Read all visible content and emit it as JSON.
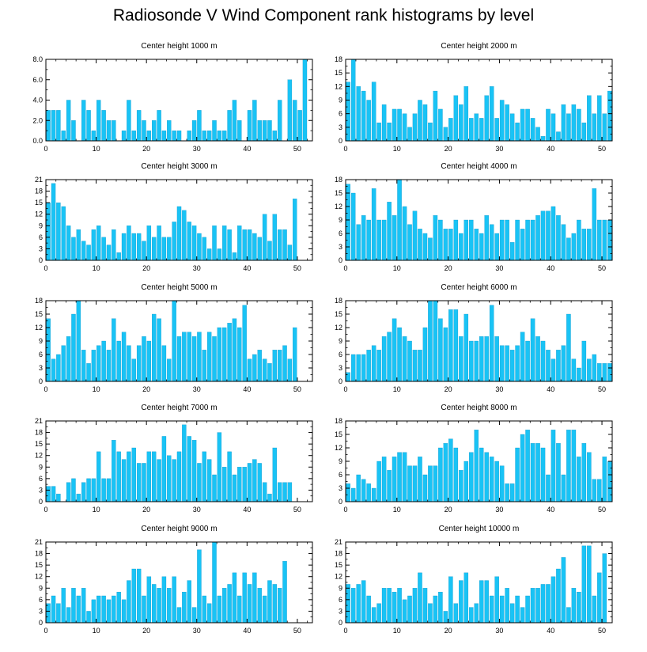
{
  "title": "Radiosonde V Wind Component rank histograms by level",
  "colors": {
    "bar": "#19c3f5",
    "bar_edge": "#0a8fc4",
    "axis": "#000000"
  },
  "chart_data": [
    {
      "type": "bar",
      "title": "Center height 1000 m",
      "xlim": [
        0,
        53
      ],
      "ylim": [
        0,
        8
      ],
      "xticks": [
        0,
        10,
        20,
        30,
        40,
        50
      ],
      "xtick_labels": [
        "0",
        "10",
        "20",
        "30",
        "40",
        "50"
      ],
      "yticks": [
        0,
        2,
        4,
        6,
        8
      ],
      "ytick_labels": [
        "0.0",
        "2.0",
        "4.0",
        "6.0",
        "8.0"
      ],
      "values": [
        3,
        3,
        3,
        1,
        4,
        2,
        0,
        4,
        3,
        1,
        4,
        3,
        2,
        2,
        0,
        1,
        4,
        1,
        3,
        2,
        1,
        2,
        3,
        1,
        2,
        1,
        1,
        0,
        1,
        2,
        3,
        1,
        1,
        2,
        1,
        1,
        3,
        4,
        2,
        0,
        3,
        4,
        2,
        2,
        2,
        1,
        4,
        0,
        6,
        4,
        3,
        8
      ]
    },
    {
      "type": "bar",
      "title": "Center height 2000 m",
      "xlim": [
        0,
        52
      ],
      "ylim": [
        0,
        18
      ],
      "xticks": [
        0,
        10,
        20,
        30,
        40,
        50
      ],
      "xtick_labels": [
        "0",
        "10",
        "20",
        "30",
        "40",
        "50"
      ],
      "yticks": [
        0,
        3,
        6,
        9,
        12,
        15,
        18
      ],
      "ytick_labels": [
        "0",
        "3",
        "6",
        "9",
        "12",
        "15",
        "18"
      ],
      "values": [
        13,
        18,
        12,
        11,
        9,
        13,
        4,
        8,
        4,
        7,
        7,
        6,
        3,
        6,
        9,
        8,
        4,
        11,
        7,
        3,
        5,
        10,
        8,
        12,
        5,
        6,
        5,
        10,
        12,
        5,
        9,
        8,
        6,
        4,
        7,
        7,
        5,
        3,
        1,
        7,
        6,
        2,
        8,
        6,
        8,
        7,
        4,
        10,
        6,
        10,
        6,
        11
      ]
    },
    {
      "type": "bar",
      "title": "Center height 3000 m",
      "xlim": [
        0,
        53
      ],
      "ylim": [
        0,
        21
      ],
      "xticks": [
        0,
        10,
        20,
        30,
        40,
        50
      ],
      "xtick_labels": [
        "0",
        "10",
        "20",
        "30",
        "40",
        "50"
      ],
      "yticks": [
        0,
        3,
        6,
        9,
        12,
        15,
        18,
        21
      ],
      "ytick_labels": [
        "0",
        "3",
        "6",
        "9",
        "12",
        "15",
        "18",
        "21"
      ],
      "values": [
        15,
        20,
        15,
        14,
        9,
        6,
        8,
        5,
        4,
        8,
        9,
        6,
        4,
        8,
        2,
        7,
        9,
        7,
        7,
        5,
        9,
        6,
        9,
        6,
        6,
        10,
        14,
        13,
        10,
        9,
        7,
        6,
        3,
        9,
        3,
        9,
        8,
        2,
        9,
        8,
        8,
        7,
        6,
        12,
        5,
        12,
        8,
        8,
        4,
        16
      ]
    },
    {
      "type": "bar",
      "title": "Center height 4000 m",
      "xlim": [
        0,
        52
      ],
      "ylim": [
        0,
        18
      ],
      "xticks": [
        0,
        10,
        20,
        30,
        40,
        50
      ],
      "xtick_labels": [
        "0",
        "10",
        "20",
        "30",
        "40",
        "50"
      ],
      "yticks": [
        0,
        3,
        6,
        9,
        12,
        15,
        18
      ],
      "ytick_labels": [
        "0",
        "3",
        "6",
        "9",
        "12",
        "15",
        "18"
      ],
      "values": [
        17,
        15,
        8,
        10,
        9,
        16,
        9,
        9,
        13,
        10,
        18,
        12,
        8,
        11,
        7,
        6,
        5,
        10,
        9,
        7,
        7,
        9,
        6,
        9,
        9,
        7,
        6,
        10,
        8,
        6,
        9,
        9,
        4,
        9,
        7,
        9,
        9,
        10,
        11,
        11,
        12,
        10,
        8,
        5,
        6,
        9,
        7,
        7,
        16,
        9,
        9,
        9
      ]
    },
    {
      "type": "bar",
      "title": "Center height 5000 m",
      "xlim": [
        0,
        53
      ],
      "ylim": [
        0,
        18
      ],
      "xticks": [
        0,
        10,
        20,
        30,
        40,
        50
      ],
      "xtick_labels": [
        "0",
        "10",
        "20",
        "30",
        "40",
        "50"
      ],
      "yticks": [
        0,
        3,
        6,
        9,
        12,
        15,
        18
      ],
      "ytick_labels": [
        "0",
        "3",
        "6",
        "9",
        "12",
        "15",
        "18"
      ],
      "values": [
        14,
        5,
        6,
        8,
        10,
        15,
        18,
        7,
        4,
        7,
        8,
        9,
        7,
        14,
        9,
        11,
        8,
        5,
        8,
        10,
        9,
        15,
        14,
        8,
        5,
        18,
        10,
        11,
        11,
        10,
        11,
        7,
        11,
        10,
        12,
        12,
        13,
        14,
        12,
        17,
        5,
        6,
        7,
        5,
        4,
        7,
        7,
        8,
        5,
        12
      ]
    },
    {
      "type": "bar",
      "title": "Center height 6000 m",
      "xlim": [
        0,
        52
      ],
      "ylim": [
        0,
        18
      ],
      "xticks": [
        0,
        10,
        20,
        30,
        40,
        50
      ],
      "xtick_labels": [
        "0",
        "10",
        "20",
        "30",
        "40",
        "50"
      ],
      "yticks": [
        0,
        3,
        6,
        9,
        12,
        15,
        18
      ],
      "ytick_labels": [
        "0",
        "3",
        "6",
        "9",
        "12",
        "15",
        "18"
      ],
      "values": [
        2,
        6,
        6,
        6,
        7,
        8,
        7,
        10,
        11,
        14,
        12,
        10,
        9,
        7,
        7,
        12,
        18,
        18,
        14,
        12,
        16,
        16,
        10,
        15,
        9,
        9,
        10,
        10,
        17,
        10,
        8,
        8,
        7,
        8,
        11,
        9,
        14,
        10,
        9,
        7,
        5,
        7,
        8,
        15,
        5,
        3,
        9,
        5,
        6,
        4,
        4,
        4
      ]
    },
    {
      "type": "bar",
      "title": "Center height 7000 m",
      "xlim": [
        0,
        53
      ],
      "ylim": [
        0,
        21
      ],
      "xticks": [
        0,
        10,
        20,
        30,
        40,
        50
      ],
      "xtick_labels": [
        "0",
        "10",
        "20",
        "30",
        "40",
        "50"
      ],
      "yticks": [
        0,
        3,
        6,
        9,
        12,
        15,
        18,
        21
      ],
      "ytick_labels": [
        "0",
        "3",
        "6",
        "9",
        "12",
        "15",
        "18",
        "21"
      ],
      "values": [
        4,
        4,
        2,
        0,
        5,
        6,
        2,
        5,
        6,
        6,
        13,
        6,
        6,
        16,
        13,
        11,
        13,
        14,
        10,
        10,
        13,
        13,
        11,
        17,
        12,
        11,
        13,
        20,
        17,
        16,
        10,
        13,
        11,
        7,
        18,
        9,
        13,
        7,
        9,
        9,
        10,
        11,
        10,
        5,
        2,
        14,
        5,
        5,
        5
      ]
    },
    {
      "type": "bar",
      "title": "Center height 8000 m",
      "xlim": [
        0,
        52
      ],
      "ylim": [
        0,
        18
      ],
      "xticks": [
        0,
        10,
        20,
        30,
        40,
        50
      ],
      "xtick_labels": [
        "0",
        "10",
        "20",
        "30",
        "40",
        "50"
      ],
      "yticks": [
        0,
        3,
        6,
        9,
        12,
        15,
        18
      ],
      "ytick_labels": [
        "0",
        "3",
        "6",
        "9",
        "12",
        "15",
        "18"
      ],
      "values": [
        4,
        3,
        6,
        5,
        4,
        3,
        9,
        10,
        7,
        10,
        11,
        11,
        8,
        8,
        10,
        6,
        8,
        8,
        12,
        13,
        14,
        12,
        7,
        9,
        11,
        16,
        12,
        11,
        10,
        9,
        8,
        4,
        4,
        12,
        15,
        16,
        13,
        13,
        12,
        6,
        16,
        13,
        6,
        16,
        16,
        10,
        13,
        11,
        5,
        5,
        10,
        9
      ]
    },
    {
      "type": "bar",
      "title": "Center height 9000 m",
      "xlim": [
        0,
        53
      ],
      "ylim": [
        0,
        21
      ],
      "xticks": [
        0,
        10,
        20,
        30,
        40,
        50
      ],
      "xtick_labels": [
        "0",
        "10",
        "20",
        "30",
        "40",
        "50"
      ],
      "yticks": [
        0,
        3,
        6,
        9,
        12,
        15,
        18,
        21
      ],
      "ytick_labels": [
        "0",
        "3",
        "6",
        "9",
        "12",
        "15",
        "18",
        "21"
      ],
      "values": [
        5,
        7,
        5,
        9,
        4,
        9,
        7,
        9,
        3,
        6,
        7,
        7,
        6,
        7,
        8,
        6,
        11,
        14,
        14,
        7,
        12,
        10,
        9,
        12,
        9,
        12,
        4,
        8,
        11,
        4,
        19,
        7,
        5,
        21,
        7,
        9,
        10,
        13,
        7,
        13,
        10,
        13,
        9,
        7,
        11,
        10,
        9,
        16
      ]
    },
    {
      "type": "bar",
      "title": "Center height 10000 m",
      "xlim": [
        0,
        52
      ],
      "ylim": [
        0,
        21
      ],
      "xticks": [
        0,
        10,
        20,
        30,
        40,
        50
      ],
      "xtick_labels": [
        "0",
        "10",
        "20",
        "30",
        "40",
        "50"
      ],
      "yticks": [
        0,
        3,
        6,
        9,
        12,
        15,
        18,
        21
      ],
      "ytick_labels": [
        "0",
        "3",
        "6",
        "9",
        "12",
        "15",
        "18",
        "21"
      ],
      "values": [
        10,
        9,
        10,
        11,
        7,
        4,
        5,
        9,
        9,
        8,
        9,
        6,
        7,
        9,
        13,
        9,
        5,
        7,
        8,
        3,
        12,
        5,
        11,
        13,
        4,
        5,
        11,
        11,
        7,
        12,
        7,
        9,
        5,
        7,
        4,
        7,
        9,
        9,
        10,
        10,
        12,
        14,
        17,
        4,
        9,
        8,
        20,
        20,
        7,
        13,
        18
      ]
    }
  ]
}
